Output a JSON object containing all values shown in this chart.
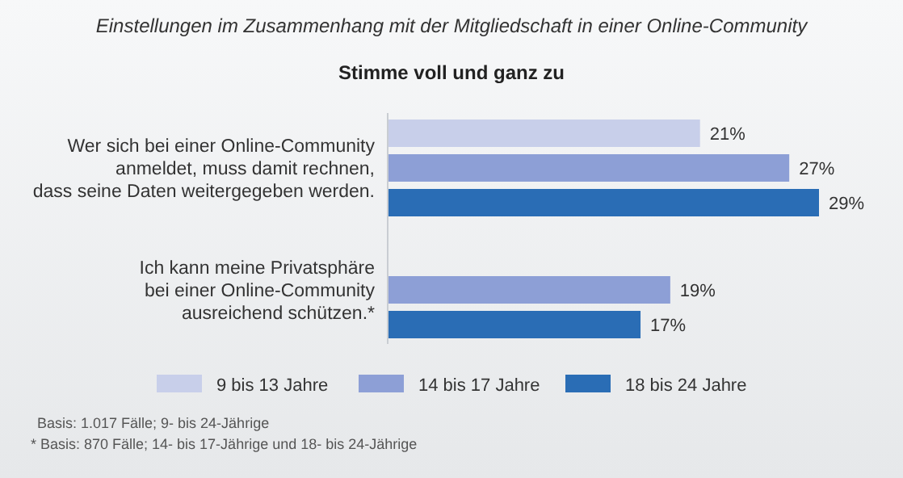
{
  "chart_data": {
    "type": "bar",
    "orientation": "horizontal",
    "title": "Einstellungen im Zusammenhang mit der Mitgliedschaft in einer Online-Community",
    "subtitle": "Stimme voll und ganz zu",
    "categories": [
      "Wer sich bei einer Online-Community\nanmeldet, muss damit rechnen,\ndass seine Daten weitergegeben werden.",
      "Ich kann meine Privatsphäre\nbei einer Online-Community\nausreichend schützen.*"
    ],
    "series": [
      {
        "name": "9 bis 13 Jahre",
        "color": "#c8cfea",
        "values": [
          21,
          null
        ],
        "value_labels": [
          "21%",
          null
        ]
      },
      {
        "name": "14 bis 17 Jahre",
        "color": "#8d9fd6",
        "values": [
          27,
          19
        ],
        "value_labels": [
          "27%",
          "19%"
        ]
      },
      {
        "name": "18 bis 24 Jahre",
        "color": "#2a6db5",
        "values": [
          29,
          17
        ],
        "value_labels": [
          "29%",
          "17%"
        ]
      }
    ],
    "legend": "bottom",
    "grid": false,
    "annotations": [
      "Basis: 1.017 Fälle; 9- bis 24-Jährige",
      "* Basis: 870 Fälle; 14- bis 17-Jährige und 18- bis 24-Jährige"
    ]
  }
}
